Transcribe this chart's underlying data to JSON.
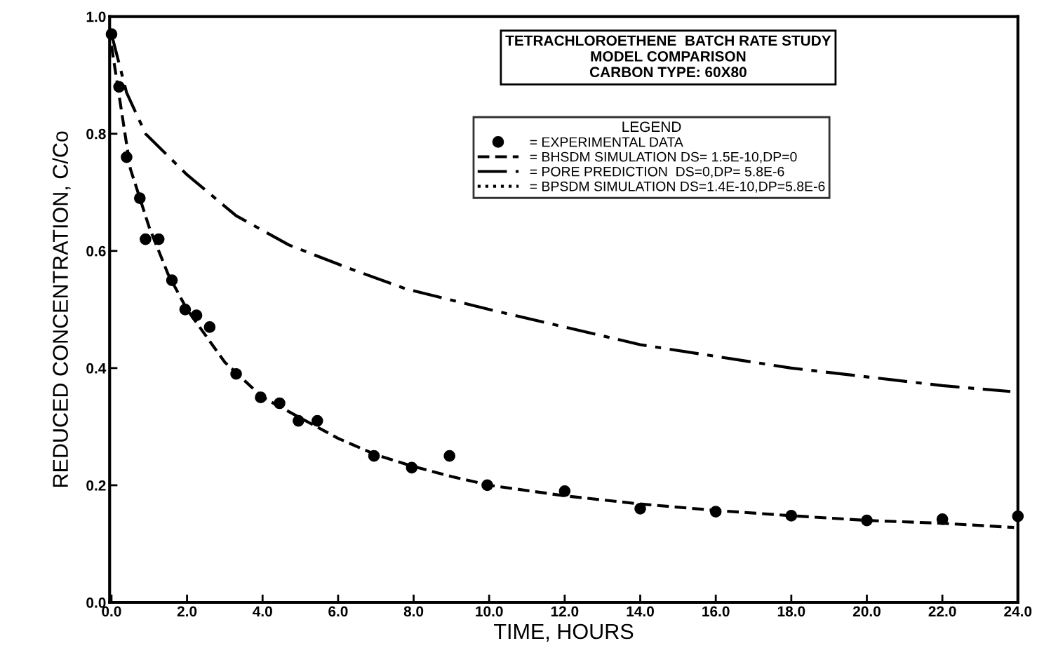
{
  "chart_data": {
    "type": "line",
    "title": "TETRACHLOROETHENE  BATCH RATE STUDY\nMODEL COMPARISON\nCARBON TYPE: 60X80",
    "xlabel": "TIME, HOURS",
    "ylabel": "REDUCED CONCENTRATION, C/Co",
    "legend_title": "LEGEND",
    "legend": "top right",
    "grid": false,
    "xlim": [
      -0.05,
      24
    ],
    "ylim": [
      0,
      1
    ],
    "xticks": [
      {
        "value": 0,
        "label": "0.0"
      },
      {
        "value": 2,
        "label": "2.0"
      },
      {
        "value": 4,
        "label": "4.0"
      },
      {
        "value": 6,
        "label": "6.0"
      },
      {
        "value": 8,
        "label": "8.0"
      },
      {
        "value": 10,
        "label": "10.0"
      },
      {
        "value": 12,
        "label": "12.0"
      },
      {
        "value": 14,
        "label": "14.0"
      },
      {
        "value": 16,
        "label": "16.0"
      },
      {
        "value": 18,
        "label": "18.0"
      },
      {
        "value": 20,
        "label": "20.0"
      },
      {
        "value": 22,
        "label": "22.0"
      },
      {
        "value": 24,
        "label": "24.0"
      }
    ],
    "yticks": [
      {
        "value": 0,
        "label": "0.0"
      },
      {
        "value": 0.2,
        "label": "0.2"
      },
      {
        "value": 0.4,
        "label": "0.4"
      },
      {
        "value": 0.6,
        "label": "0.6"
      },
      {
        "value": 0.8,
        "label": "0.8"
      },
      {
        "value": 1,
        "label": "1.0"
      }
    ],
    "series": [
      {
        "name": "= EXPERIMENTAL DATA",
        "type": "scatter",
        "marker": "circle",
        "color": "#000000",
        "x": [
          0,
          0.2,
          0.4,
          0.75,
          0.9,
          1.25,
          1.6,
          1.95,
          2.25,
          2.6,
          3.3,
          3.95,
          4.45,
          4.95,
          5.45,
          6.95,
          7.95,
          8.95,
          9.95,
          12,
          14,
          16,
          18,
          20,
          22,
          24
        ],
        "values": [
          0.97,
          0.88,
          0.76,
          0.69,
          0.62,
          0.62,
          0.55,
          0.5,
          0.49,
          0.47,
          0.39,
          0.35,
          0.34,
          0.31,
          0.31,
          0.25,
          0.23,
          0.25,
          0.2,
          0.19,
          0.16,
          0.155,
          0.148,
          0.14,
          0.142,
          0.147
        ]
      },
      {
        "name": "= BHSDM SIMULATION DS= 1.5E-10,DP=0",
        "line_style": "dashed",
        "color": "#000000",
        "x": [
          0,
          0.5,
          1,
          1.5,
          2,
          3,
          4,
          5,
          6,
          7,
          8,
          9,
          10,
          12,
          14,
          16,
          18,
          20,
          22,
          23.9
        ],
        "values": [
          0.95,
          0.74,
          0.64,
          0.56,
          0.5,
          0.41,
          0.35,
          0.315,
          0.28,
          0.252,
          0.232,
          0.215,
          0.2,
          0.182,
          0.168,
          0.157,
          0.148,
          0.14,
          0.135,
          0.128
        ]
      },
      {
        "name": "= PORE PREDICTION  DS=0,DP= 5.8E-6",
        "line_style": "dashdot",
        "color": "#000000",
        "x": [
          0,
          0.4,
          0.9,
          2,
          3.3,
          4.7,
          6.3,
          7.8,
          10,
          14,
          18,
          22,
          23.8
        ],
        "values": [
          0.97,
          0.87,
          0.8,
          0.73,
          0.66,
          0.61,
          0.57,
          0.535,
          0.5,
          0.44,
          0.4,
          0.37,
          0.36
        ]
      },
      {
        "name": "= BPSDM SIMULATION DS=1.4E-10,DP=5.8E-6",
        "line_style": "dotted",
        "color": "#000000"
      }
    ]
  }
}
